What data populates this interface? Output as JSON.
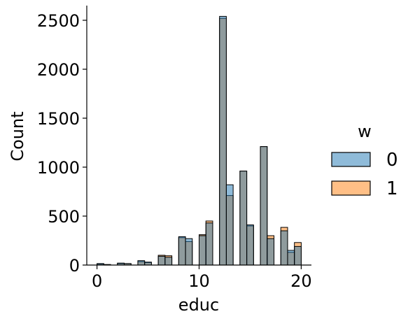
{
  "chart_data": {
    "type": "bar",
    "title": "",
    "xlabel": "educ",
    "ylabel": "Count",
    "xlim": [
      -1,
      21
    ],
    "ylim": [
      0,
      2650
    ],
    "xticks": [
      0,
      10,
      20
    ],
    "yticks": [
      0,
      500,
      1000,
      1500,
      2000,
      2500
    ],
    "grid": false,
    "legend_title": "w",
    "legend_position": "center-right",
    "bins": {
      "start": 0,
      "width": 0.6667,
      "count": 30
    },
    "series": [
      {
        "name": "0",
        "color": "#1f77b4",
        "values": [
          15,
          5,
          0,
          20,
          15,
          0,
          45,
          30,
          0,
          90,
          80,
          0,
          290,
          270,
          0,
          300,
          430,
          0,
          2540,
          820,
          0,
          960,
          410,
          0,
          1210,
          270,
          0,
          350,
          150,
          190
        ]
      },
      {
        "name": "1",
        "color": "#ff7f0e",
        "values": [
          10,
          5,
          0,
          15,
          15,
          0,
          35,
          25,
          0,
          100,
          95,
          0,
          280,
          240,
          0,
          310,
          450,
          0,
          2520,
          710,
          0,
          960,
          400,
          0,
          1210,
          300,
          0,
          385,
          130,
          230
        ]
      }
    ]
  }
}
